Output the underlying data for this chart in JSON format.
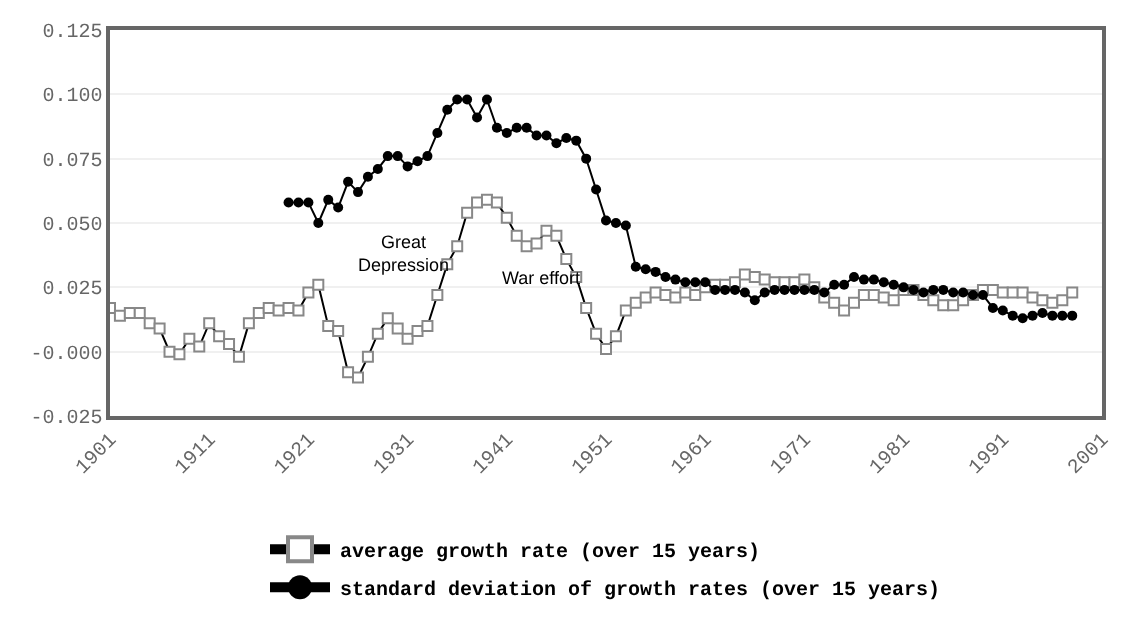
{
  "chart_data": {
    "type": "line",
    "x": [
      1901,
      1902,
      1903,
      1904,
      1905,
      1906,
      1907,
      1908,
      1909,
      1910,
      1911,
      1912,
      1913,
      1914,
      1915,
      1916,
      1917,
      1918,
      1919,
      1920,
      1921,
      1922,
      1923,
      1924,
      1925,
      1926,
      1927,
      1928,
      1929,
      1930,
      1931,
      1932,
      1933,
      1934,
      1935,
      1936,
      1937,
      1938,
      1939,
      1940,
      1941,
      1942,
      1943,
      1944,
      1945,
      1946,
      1947,
      1948,
      1949,
      1950,
      1951,
      1952,
      1953,
      1954,
      1955,
      1956,
      1957,
      1958,
      1959,
      1960,
      1961,
      1962,
      1963,
      1964,
      1965,
      1966,
      1967,
      1968,
      1969,
      1970,
      1971,
      1972,
      1973,
      1974,
      1975,
      1976,
      1977,
      1978,
      1979,
      1980,
      1981,
      1982,
      1983,
      1984,
      1985,
      1986,
      1987,
      1988,
      1989,
      1990,
      1991,
      1992,
      1993,
      1994,
      1995,
      1996,
      1997,
      1998
    ],
    "series": [
      {
        "name": "average growth rate (over 15 years)",
        "color": "#000000",
        "marker": "square",
        "values": [
          0.017,
          0.014,
          0.015,
          0.015,
          0.011,
          0.009,
          0.0,
          -0.001,
          0.005,
          0.002,
          0.011,
          0.006,
          0.003,
          -0.002,
          0.011,
          0.015,
          0.017,
          0.016,
          0.017,
          0.016,
          0.023,
          0.026,
          0.01,
          0.008,
          -0.008,
          -0.01,
          -0.002,
          0.007,
          0.013,
          0.009,
          0.005,
          0.008,
          0.01,
          0.022,
          0.034,
          0.041,
          0.054,
          0.058,
          0.059,
          0.058,
          0.052,
          0.045,
          0.041,
          0.042,
          0.047,
          0.045,
          0.036,
          0.029,
          0.017,
          0.007,
          0.001,
          0.006,
          0.016,
          0.019,
          0.021,
          0.023,
          0.022,
          0.021,
          0.023,
          0.022,
          0.025,
          0.026,
          0.026,
          0.027,
          0.03,
          0.029,
          0.028,
          0.027,
          0.027,
          0.027,
          0.028,
          0.025,
          0.021,
          0.019,
          0.016,
          0.019,
          0.022,
          0.022,
          0.021,
          0.02,
          0.024,
          0.024,
          0.022,
          0.02,
          0.018,
          0.018,
          0.02,
          0.022,
          0.024,
          0.024,
          0.023,
          0.023,
          0.023,
          0.021,
          0.02,
          0.019,
          0.02,
          0.023
        ]
      },
      {
        "name": "standard deviation of growth rates (over 15 years)",
        "color": "#000000",
        "marker": "circle",
        "values": [
          null,
          null,
          null,
          null,
          null,
          null,
          null,
          null,
          null,
          null,
          null,
          null,
          null,
          null,
          null,
          null,
          null,
          null,
          0.058,
          0.058,
          0.058,
          0.05,
          0.059,
          0.056,
          0.066,
          0.062,
          0.068,
          0.071,
          0.076,
          0.076,
          0.072,
          0.074,
          0.076,
          0.085,
          0.094,
          0.098,
          0.098,
          0.091,
          0.098,
          0.087,
          0.085,
          0.087,
          0.087,
          0.084,
          0.084,
          0.081,
          0.083,
          0.082,
          0.075,
          0.063,
          0.051,
          0.05,
          0.049,
          0.033,
          0.032,
          0.031,
          0.029,
          0.028,
          0.027,
          0.027,
          0.027,
          0.024,
          0.024,
          0.024,
          0.023,
          0.02,
          0.023,
          0.024,
          0.024,
          0.024,
          0.024,
          0.024,
          0.023,
          0.026,
          0.026,
          0.029,
          0.028,
          0.028,
          0.027,
          0.026,
          0.025,
          0.024,
          0.023,
          0.024,
          0.024,
          0.023,
          0.023,
          0.022,
          0.022,
          0.017,
          0.016,
          0.014,
          0.013,
          0.014,
          0.015,
          0.014,
          0.014,
          0.014
        ]
      }
    ],
    "xlim": [
      1901,
      2001
    ],
    "xticks": [
      1901,
      1911,
      1921,
      1931,
      1941,
      1951,
      1961,
      1971,
      1981,
      1991,
      2001
    ],
    "ylim": [
      -0.025,
      0.125
    ],
    "yticks": [
      {
        "value": -0.025,
        "label": "-0.025"
      },
      {
        "value": 0,
        "label": "-0.000"
      },
      {
        "value": 0.025,
        "label": "0.025"
      },
      {
        "value": 0.05,
        "label": "0.050"
      },
      {
        "value": 0.075,
        "label": "0.075"
      },
      {
        "value": 0.1,
        "label": "0.100"
      },
      {
        "value": 0.125,
        "label": "0.125"
      }
    ],
    "grid": "y",
    "legend": "bottom",
    "line_style": "solid",
    "annotations": [
      "Great\nDepression",
      "War effort"
    ]
  }
}
